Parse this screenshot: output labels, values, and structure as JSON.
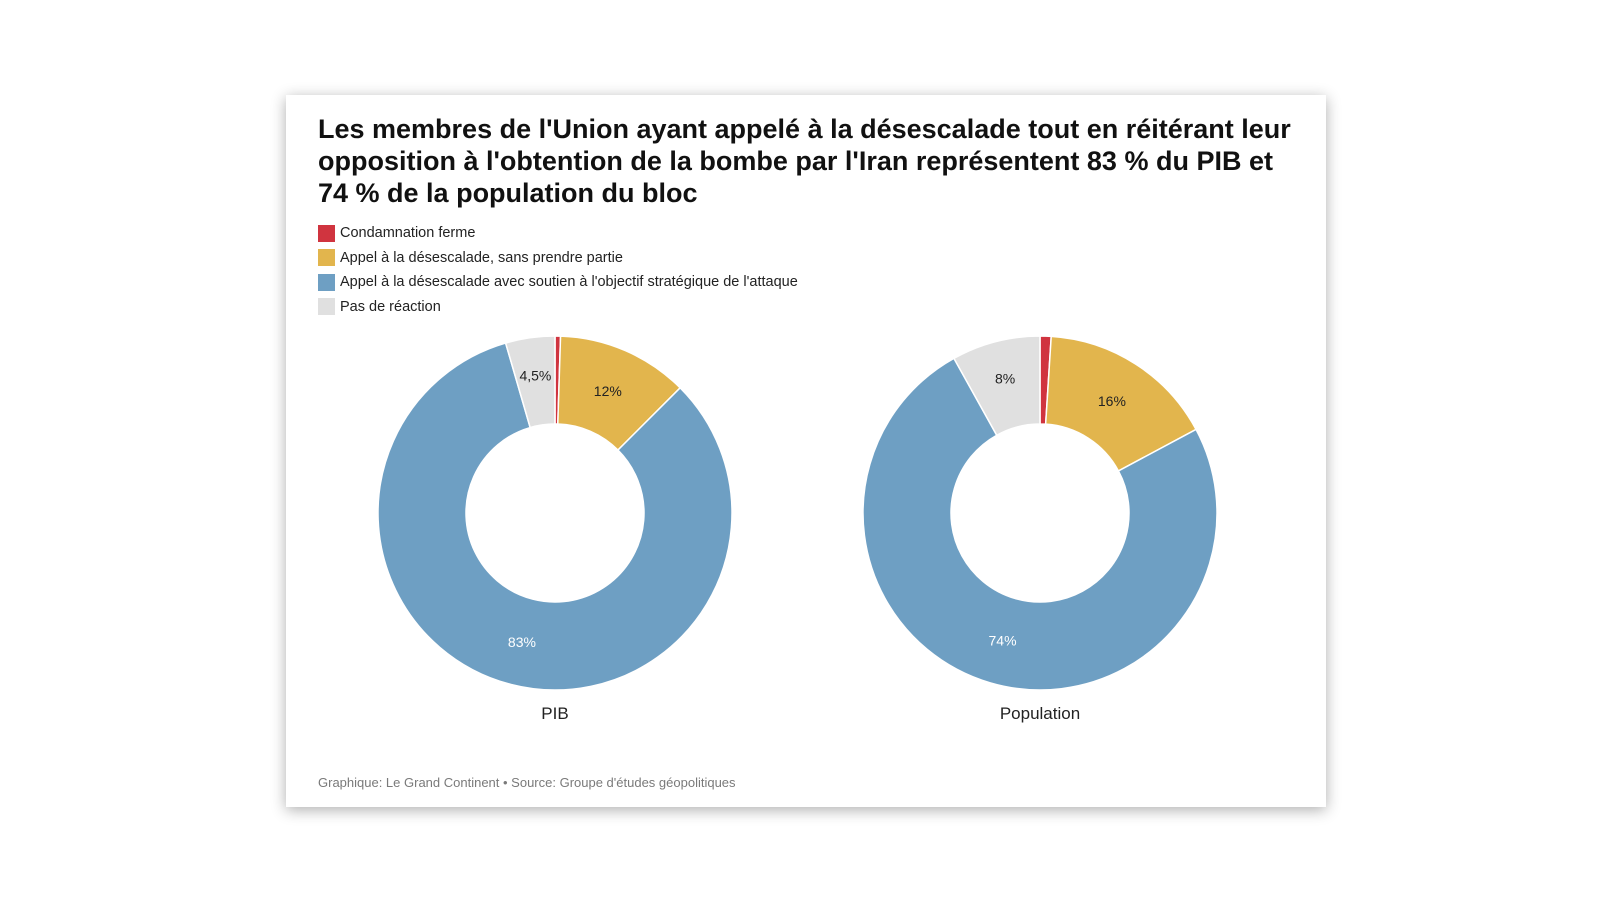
{
  "chart_data": [
    {
      "type": "pie",
      "title": "Les membres de l'Union ayant appelé à la désescalade tout en réitérant leur opposition à l'obtention de la bombe par l'Iran représentent 83 % du PIB et 74 % de la population du bloc",
      "label": "PIB",
      "categories": [
        "Condamnation ferme",
        "Appel à la désescalade, sans prendre partie",
        "Appel à la désescalade avec soutien à l'objectif stratégique de l'attaque",
        "Pas de réaction"
      ],
      "values": [
        0.5,
        12,
        83,
        4.5
      ],
      "data_labels": [
        "",
        "12%",
        "83%",
        "4,5%"
      ],
      "legend": "top-left"
    },
    {
      "type": "pie",
      "label": "Population",
      "categories": [
        "Condamnation ferme",
        "Appel à la désescalade, sans prendre partie",
        "Appel à la désescalade avec soutien à l'objectif stratégique de l'attaque",
        "Pas de réaction"
      ],
      "values": [
        1,
        16,
        74,
        8
      ],
      "data_labels": [
        "",
        "16%",
        "74%",
        "8%"
      ],
      "legend": "top-left"
    }
  ],
  "legend": {
    "items": [
      {
        "label": "Condamnation ferme",
        "color": "#d0343f"
      },
      {
        "label": "Appel à la désescalade, sans prendre partie",
        "color": "#e2b54d"
      },
      {
        "label": "Appel à la désescalade avec soutien à l'objectif stratégique de l'attaque",
        "color": "#6e9fc3"
      },
      {
        "label": "Pas de réaction",
        "color": "#e0e0e0"
      }
    ]
  },
  "label_colors": [
    "#ffffff",
    "#222222",
    "#ffffff",
    "#222222"
  ],
  "footer": "Graphique: Le Grand Continent • Source: Groupe d'études géopolitiques"
}
